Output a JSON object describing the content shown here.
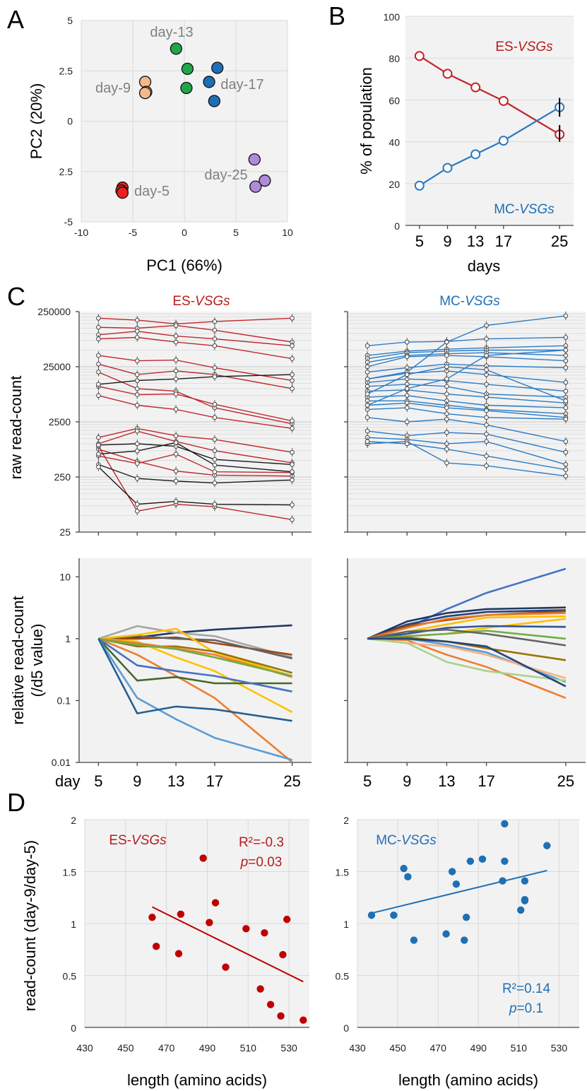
{
  "panels": {
    "A": "A",
    "B": "B",
    "C": "C",
    "D": "D"
  },
  "chart_data": [
    {
      "id": "A",
      "type": "scatter",
      "xlabel": "PC1 (66%)",
      "ylabel": "PC2 (20%)",
      "xlim": [
        -10,
        10
      ],
      "ylim": [
        -5,
        5
      ],
      "xticks": [
        "-10",
        "-5",
        "0",
        "5",
        "10"
      ],
      "yticks": [
        "5",
        "2.5",
        "0",
        "2.5",
        "-5"
      ],
      "grid": true,
      "series": [
        {
          "name": "day-5",
          "color": "#e8231f",
          "points": [
            [
              -6.0,
              -3.3
            ],
            [
              -6.1,
              -3.45
            ],
            [
              -6.0,
              -3.55
            ]
          ]
        },
        {
          "name": "day-9",
          "color": "#f5b88a",
          "points": [
            [
              -3.8,
              1.95
            ],
            [
              -3.7,
              1.45
            ],
            [
              -3.8,
              1.4
            ]
          ]
        },
        {
          "name": "day-13",
          "color": "#1fa64a",
          "points": [
            [
              -0.8,
              3.6
            ],
            [
              0.3,
              2.6
            ],
            [
              0.2,
              1.65
            ]
          ]
        },
        {
          "name": "day-17",
          "color": "#1f6fb5",
          "points": [
            [
              3.2,
              2.65
            ],
            [
              2.4,
              1.95
            ],
            [
              2.9,
              1.0
            ]
          ]
        },
        {
          "name": "day-25",
          "color": "#b08ad8",
          "points": [
            [
              6.8,
              -1.9
            ],
            [
              7.8,
              -2.95
            ],
            [
              6.9,
              -3.25
            ]
          ]
        }
      ],
      "annotations": [
        "day-13",
        "day-9",
        "day-17",
        "day-25",
        "day-5"
      ]
    },
    {
      "id": "B",
      "type": "line",
      "xlabel": "days",
      "ylabel": "% of population",
      "x": [
        5,
        9,
        13,
        17,
        25
      ],
      "xticks": [
        "5",
        "9",
        "13",
        "17",
        "25"
      ],
      "ylim": [
        0,
        100
      ],
      "yticks": [
        "0",
        "20",
        "40",
        "60",
        "80",
        "100"
      ],
      "series": [
        {
          "name": "ES-VSGs",
          "color": "#c0262b",
          "values": [
            81,
            72.5,
            66,
            59.5,
            43.5
          ]
        },
        {
          "name": "MC-VSGs",
          "color": "#2a7bc4",
          "values": [
            19,
            27.5,
            34,
            40.5,
            56.5
          ]
        }
      ],
      "legend_labels": {
        "es_prefix": "ES-",
        "mc_prefix": "MC-",
        "italic": "VSGs"
      }
    },
    {
      "id": "C-raw",
      "type": "line",
      "ylabel": "raw read-count",
      "yscale": "log",
      "yticks": [
        "250000",
        "25000",
        "2500",
        "250",
        "25"
      ],
      "x": [
        5,
        9,
        13,
        17,
        25
      ],
      "titles": {
        "es_prefix": "ES-",
        "mc_prefix": "MC-",
        "italic": "VSGs"
      },
      "es_series": [
        {
          "color": "#c0262b",
          "values": [
            190000,
            175000,
            150000,
            165000,
            190000
          ]
        },
        {
          "color": "#c0262b",
          "values": [
            130000,
            125000,
            140000,
            115000,
            70000
          ]
        },
        {
          "color": "#c0262b",
          "values": [
            95000,
            110000,
            90000,
            80000,
            60000
          ]
        },
        {
          "color": "#c0262b",
          "values": [
            80000,
            85000,
            70000,
            60000,
            35000
          ]
        },
        {
          "color": "#c0262b",
          "values": [
            40000,
            32000,
            33000,
            24000,
            14000
          ]
        },
        {
          "color": "#c0262b",
          "values": [
            28000,
            18000,
            21000,
            18000,
            10000
          ]
        },
        {
          "color": "#c0262b",
          "values": [
            20000,
            10000,
            9000,
            4500,
            2300
          ]
        },
        {
          "color": "#c0262b",
          "values": [
            11000,
            7800,
            8000,
            5200,
            2600
          ]
        },
        {
          "color": "#c0262b",
          "values": [
            7500,
            5000,
            4200,
            3000,
            1900
          ]
        },
        {
          "color": "#c0262b",
          "values": [
            1300,
            1900,
            1400,
            1200,
            700
          ]
        },
        {
          "color": "#c0262b",
          "values": [
            1000,
            1700,
            1100,
            750,
            450
          ]
        },
        {
          "color": "#c0262b",
          "values": [
            800,
            480,
            320,
            270,
            260
          ]
        },
        {
          "color": "#c0262b",
          "values": [
            600,
            440,
            650,
            310,
            300
          ]
        },
        {
          "color": "#c0262b",
          "values": [
            900,
            60,
            80,
            72,
            42
          ]
        },
        {
          "color": "#1a1a1a",
          "values": [
            12000,
            14000,
            15000,
            16500,
            18000
          ]
        },
        {
          "color": "#1a1a1a",
          "values": [
            950,
            1000,
            900,
            520,
            420
          ]
        },
        {
          "color": "#1a1a1a",
          "values": [
            650,
            740,
            1050,
            410,
            310
          ]
        },
        {
          "color": "#1a1a1a",
          "values": [
            420,
            235,
            210,
            195,
            220
          ]
        },
        {
          "color": "#1a1a1a",
          "values": [
            380,
            80,
            90,
            80,
            78
          ]
        }
      ],
      "mc_series": [
        {
          "color": "#2a7bc4",
          "values": [
            60000,
            70000,
            72000,
            80000,
            85000
          ]
        },
        {
          "color": "#2a7bc4",
          "values": [
            40000,
            48000,
            52000,
            55000,
            60000
          ]
        },
        {
          "color": "#2a7bc4",
          "values": [
            35000,
            45000,
            48000,
            50000,
            50000
          ]
        },
        {
          "color": "#2a7bc4",
          "values": [
            30000,
            40000,
            43000,
            45000,
            40000
          ]
        },
        {
          "color": "#2a7bc4",
          "values": [
            25000,
            38000,
            40000,
            38000,
            32000
          ]
        },
        {
          "color": "#2a7bc4",
          "values": [
            20000,
            24000,
            28000,
            26000,
            24000
          ]
        },
        {
          "color": "#2a7bc4",
          "values": [
            15000,
            19000,
            21000,
            18000,
            13000
          ]
        },
        {
          "color": "#2a7bc4",
          "values": [
            13000,
            15000,
            14000,
            12000,
            9000
          ]
        },
        {
          "color": "#2a7bc4",
          "values": [
            11000,
            12000,
            11000,
            8000,
            7000
          ]
        },
        {
          "color": "#2a7bc4",
          "values": [
            9000,
            9500,
            8000,
            7000,
            5500
          ]
        },
        {
          "color": "#2a7bc4",
          "values": [
            7000,
            7500,
            6000,
            5000,
            4500
          ]
        },
        {
          "color": "#2a7bc4",
          "values": [
            6000,
            6000,
            5000,
            4200,
            3500
          ]
        },
        {
          "color": "#2a7bc4",
          "values": [
            5000,
            5500,
            4500,
            4000,
            3000
          ]
        },
        {
          "color": "#2a7bc4",
          "values": [
            4200,
            4500,
            3500,
            3000,
            2800
          ]
        },
        {
          "color": "#2a7bc4",
          "values": [
            3000,
            2500,
            2800,
            2200,
            1100
          ]
        },
        {
          "color": "#2a7bc4",
          "values": [
            1700,
            1400,
            1600,
            1500,
            700
          ]
        },
        {
          "color": "#2a7bc4",
          "values": [
            1300,
            1200,
            1000,
            1100,
            420
          ]
        },
        {
          "color": "#2a7bc4",
          "values": [
            1000,
            1100,
            450,
            400,
            260
          ]
        },
        {
          "color": "#2a7bc4",
          "values": [
            1100,
            1000,
            800,
            600,
            340
          ]
        },
        {
          "color": "#2a7bc4",
          "values": [
            5000,
            10000,
            15000,
            40000,
            50000
          ]
        },
        {
          "color": "#2a7bc4",
          "values": [
            15000,
            20000,
            70000,
            140000,
            210000
          ]
        },
        {
          "color": "#2a7bc4",
          "values": [
            8000,
            18000,
            25000,
            22000,
            6000
          ]
        }
      ]
    },
    {
      "id": "C-rel",
      "type": "line",
      "ylabel": "relative read-count",
      "ylabel2": "(/d5 value)",
      "yscale": "log",
      "yticks": [
        "10",
        "1",
        "0.1",
        "0.01"
      ],
      "xlabel": "day",
      "xticks": [
        "5",
        "9",
        "13",
        "17",
        "25"
      ],
      "x": [
        5,
        9,
        13,
        17,
        25
      ],
      "es_series": [
        {
          "color": "#1f3864",
          "values": [
            1,
            1.05,
            1.25,
            1.4,
            1.65
          ]
        },
        {
          "color": "#a5a5a5",
          "values": [
            1,
            1.6,
            1.25,
            1.1,
            0.5
          ]
        },
        {
          "color": "#9e480e",
          "values": [
            1,
            1.0,
            1.05,
            0.85,
            0.55
          ]
        },
        {
          "color": "#636363",
          "values": [
            1,
            1.1,
            1.0,
            0.95,
            0.48
          ]
        },
        {
          "color": "#ffc000",
          "values": [
            1,
            1.15,
            1.45,
            0.6,
            0.25
          ]
        },
        {
          "color": "#ffc000",
          "values": [
            1,
            0.9,
            0.5,
            0.3,
            0.065
          ]
        },
        {
          "color": "#997300",
          "values": [
            1,
            0.75,
            0.75,
            0.62,
            0.28
          ]
        },
        {
          "color": "#ed7d31",
          "values": [
            1,
            0.85,
            0.7,
            0.55,
            0.24
          ]
        },
        {
          "color": "#ed7d31",
          "values": [
            1,
            0.55,
            0.25,
            0.11,
            0.01
          ]
        },
        {
          "color": "#70ad47",
          "values": [
            1,
            0.8,
            0.68,
            0.5,
            0.25
          ]
        },
        {
          "color": "#43682b",
          "values": [
            1,
            0.21,
            0.24,
            0.19,
            0.19
          ]
        },
        {
          "color": "#4472c4",
          "values": [
            1,
            0.37,
            0.3,
            0.25,
            0.14
          ]
        },
        {
          "color": "#5b9bd5",
          "values": [
            1,
            0.11,
            0.05,
            0.025,
            0.011
          ]
        },
        {
          "color": "#255e91",
          "values": [
            1,
            0.062,
            0.08,
            0.072,
            0.047
          ]
        }
      ],
      "mc_series": [
        {
          "color": "#4472c4",
          "values": [
            1,
            1.5,
            3.0,
            5.5,
            13.5
          ]
        },
        {
          "color": "#1f3864",
          "values": [
            1,
            1.9,
            2.6,
            3.0,
            3.2
          ]
        },
        {
          "color": "#264478",
          "values": [
            1,
            1.7,
            2.3,
            2.7,
            2.9
          ]
        },
        {
          "color": "#9e480e",
          "values": [
            1,
            1.6,
            2.0,
            2.4,
            2.8
          ]
        },
        {
          "color": "#ed7d31",
          "values": [
            1,
            1.5,
            2.1,
            2.4,
            2.6
          ]
        },
        {
          "color": "#ffc000",
          "values": [
            1,
            1.3,
            1.7,
            2.2,
            2.3
          ]
        },
        {
          "color": "#ffc000",
          "values": [
            1,
            1.1,
            1.2,
            1.5,
            2.1
          ]
        },
        {
          "color": "#2f5597",
          "values": [
            1,
            1.2,
            1.5,
            1.6,
            1.55
          ]
        },
        {
          "color": "#70ad47",
          "values": [
            1,
            1.1,
            1.2,
            1.35,
            1.0
          ]
        },
        {
          "color": "#636363",
          "values": [
            1,
            1.3,
            1.4,
            1.2,
            0.78
          ]
        },
        {
          "color": "#997300",
          "values": [
            1,
            1.05,
            0.9,
            0.7,
            0.45
          ]
        },
        {
          "color": "#5b9bd5",
          "values": [
            1,
            1.0,
            0.8,
            0.6,
            0.2
          ]
        },
        {
          "color": "#ed7d31",
          "values": [
            1,
            0.95,
            0.55,
            0.35,
            0.11
          ]
        },
        {
          "color": "#f4b183",
          "values": [
            1,
            0.85,
            0.75,
            0.55,
            0.23
          ]
        },
        {
          "color": "#a9d18e",
          "values": [
            1,
            0.85,
            0.42,
            0.3,
            0.21
          ]
        },
        {
          "color": "#264478",
          "values": [
            1,
            1.0,
            0.9,
            0.75,
            0.17
          ]
        }
      ]
    },
    {
      "id": "D-ES",
      "type": "scatter",
      "title_prefix": "ES-",
      "title_italic": "VSGs",
      "ylabel": "read-count (day-9/day-5)",
      "xlabel": "length (amino acids)",
      "xlim": [
        430,
        540
      ],
      "ylim": [
        0,
        2
      ],
      "xticks": [
        "430",
        "450",
        "470",
        "490",
        "510",
        "530"
      ],
      "yticks": [
        "0",
        "0.5",
        "1",
        "1.5",
        "2"
      ],
      "r2": "R²=-0.3",
      "p_label": "p",
      "p_value": "=0.03",
      "color": "#c00000",
      "points": [
        [
          463,
          1.06
        ],
        [
          465,
          0.78
        ],
        [
          476,
          0.71
        ],
        [
          477,
          1.09
        ],
        [
          488,
          1.63
        ],
        [
          491,
          1.01
        ],
        [
          494,
          1.2
        ],
        [
          499,
          0.58
        ],
        [
          509,
          0.95
        ],
        [
          516,
          0.37
        ],
        [
          518,
          0.91
        ],
        [
          521,
          0.22
        ],
        [
          526,
          0.11
        ],
        [
          527,
          0.7
        ],
        [
          529,
          1.04
        ],
        [
          537,
          0.07
        ]
      ],
      "fit": [
        [
          463,
          1.16
        ],
        [
          537,
          0.44
        ]
      ]
    },
    {
      "id": "D-MC",
      "type": "scatter",
      "title_prefix": "MC-",
      "title_italic": "VSGs",
      "xlabel": "length (amino acids)",
      "xlim": [
        430,
        540
      ],
      "ylim": [
        0,
        2
      ],
      "xticks": [
        "430",
        "450",
        "470",
        "490",
        "510",
        "530"
      ],
      "yticks": [
        "0",
        "0.5",
        "1",
        "1.5",
        "2"
      ],
      "r2": "R²=0.14",
      "p_label": "p",
      "p_value": "=0.1",
      "color": "#1f6fb5",
      "points": [
        [
          437,
          1.08
        ],
        [
          448,
          1.08
        ],
        [
          453,
          1.53
        ],
        [
          455,
          1.45
        ],
        [
          458,
          0.84
        ],
        [
          474,
          0.9
        ],
        [
          477,
          1.5
        ],
        [
          479,
          1.38
        ],
        [
          483,
          0.84
        ],
        [
          484,
          1.06
        ],
        [
          486,
          1.6
        ],
        [
          492,
          1.62
        ],
        [
          502,
          1.41
        ],
        [
          503,
          1.6
        ],
        [
          503,
          1.96
        ],
        [
          511,
          1.13
        ],
        [
          513,
          1.41
        ],
        [
          513,
          1.22
        ],
        [
          513,
          1.23
        ],
        [
          524,
          1.75
        ]
      ],
      "fit": [
        [
          437,
          1.1
        ],
        [
          524,
          1.51
        ]
      ]
    }
  ]
}
